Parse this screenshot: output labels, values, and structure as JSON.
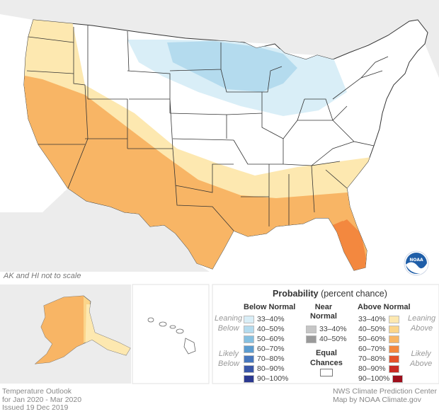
{
  "map": {
    "scale_note": "AK and HI not to scale",
    "footer_left": [
      "Temperature Outlook",
      "for Jan 2020 - Mar 2020",
      "Issued 19 Dec 2019"
    ],
    "footer_right": [
      "NWS Climate Prediction Center",
      "Map by NOAA Climate.gov"
    ],
    "logo_icon": "noaa-logo"
  },
  "legend": {
    "title_bold": "Probability",
    "title_rest": " (percent chance)",
    "below_header": "Below Normal",
    "near_header": [
      "Near",
      "Normal"
    ],
    "above_header": "Above Normal",
    "leaning_below": [
      "Leaning",
      "Below"
    ],
    "likely_below": [
      "Likely",
      "Below"
    ],
    "leaning_above": [
      "Leaning",
      "Above"
    ],
    "likely_above": [
      "Likely",
      "Above"
    ],
    "equal_chances": [
      "Equal",
      "Chances"
    ],
    "below": [
      {
        "label": "33–40%",
        "color": "#d9eef7"
      },
      {
        "label": "40–50%",
        "color": "#b4dbee"
      },
      {
        "label": "50–60%",
        "color": "#86c0e0"
      },
      {
        "label": "60–70%",
        "color": "#5c9ccf"
      },
      {
        "label": "70–80%",
        "color": "#4777bd"
      },
      {
        "label": "80–90%",
        "color": "#3a57a8"
      },
      {
        "label": "90–100%",
        "color": "#2b3990"
      }
    ],
    "near": [
      {
        "label": "33–40%",
        "color": "#c6c6c6"
      },
      {
        "label": "40–50%",
        "color": "#9a9a9a"
      }
    ],
    "above": [
      {
        "label": "33–40%",
        "color": "#fde8b0"
      },
      {
        "label": "40–50%",
        "color": "#fbd58a"
      },
      {
        "label": "50–60%",
        "color": "#f8b565"
      },
      {
        "label": "60–70%",
        "color": "#f3883f"
      },
      {
        "label": "70–80%",
        "color": "#e4522a"
      },
      {
        "label": "80–90%",
        "color": "#c82a23"
      },
      {
        "label": "90–100%",
        "color": "#9e0f1c"
      }
    ],
    "equal_color": "#ffffff"
  },
  "colors": {
    "land_equal": "#ffffff",
    "state_border": "#333333",
    "background_land": "#ececec",
    "water": "#ffffff"
  }
}
